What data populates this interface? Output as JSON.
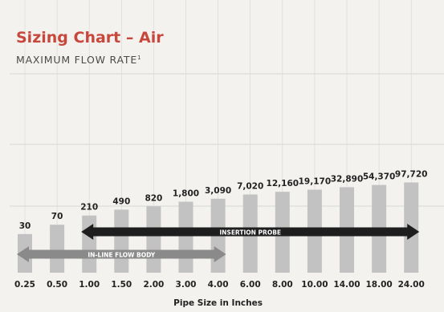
{
  "chart_data": {
    "type": "bar",
    "title": "Sizing Chart – Air",
    "subtitle": "MAXIMUM FLOW RATE",
    "subtitle_note": "1",
    "xlabel": "Pipe Size in Inches",
    "categories": [
      "0.25",
      "0.50",
      "1.00",
      "1.50",
      "2.00",
      "3.00",
      "4.00",
      "6.00",
      "8.00",
      "10.00",
      "14.00",
      "18.00",
      "24.00"
    ],
    "values": [
      30,
      70,
      210,
      490,
      820,
      1800,
      3090,
      7020,
      12160,
      19170,
      32890,
      54370,
      97720
    ],
    "value_labels": [
      "30",
      "70",
      "210",
      "490",
      "820",
      "1,800",
      "3,090",
      "7,020",
      "12,160",
      "19,170",
      "32,890",
      "54,370",
      "97,720"
    ],
    "grid": true,
    "ranges": [
      {
        "label": "IN-LINE FLOW BODY",
        "from": "0.25",
        "to": "4.00"
      },
      {
        "label": "INSERTION PROBE",
        "from": "1.00",
        "to": "24.00"
      }
    ],
    "colors": {
      "bar": "#c2c2c2",
      "arrow_inline": "#8a8a8a",
      "arrow_insertion": "#1e1e1e",
      "title": "#c8473d",
      "grid": "#d6d6d3"
    }
  }
}
